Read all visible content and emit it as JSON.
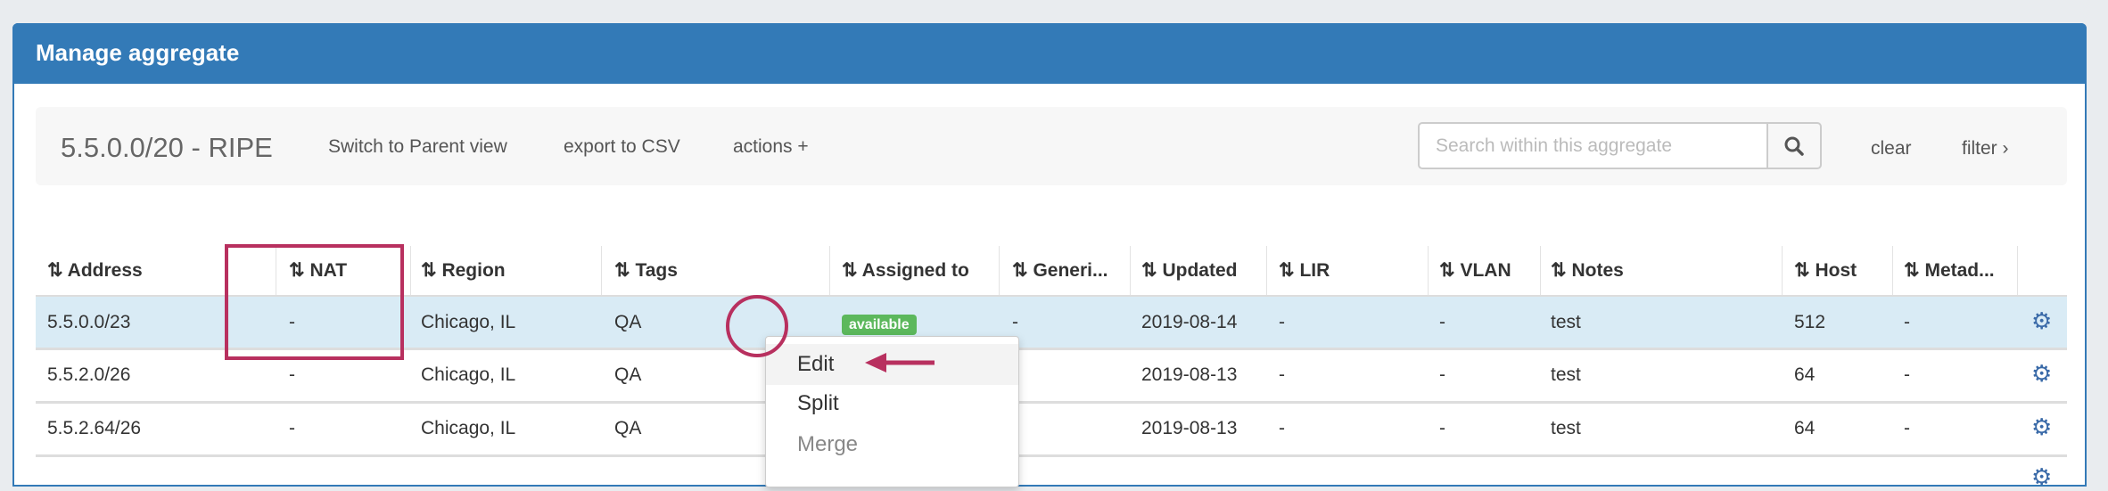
{
  "panel": {
    "title": "Manage aggregate"
  },
  "toolbar": {
    "aggregate_title": "5.5.0.0/20 - RIPE",
    "switch_parent": "Switch to Parent view",
    "export_csv": "export to CSV",
    "actions": "actions +",
    "search_placeholder": "Search within this aggregate",
    "clear": "clear",
    "filter": "filter ›"
  },
  "table": {
    "sort_icon": "⇅",
    "columns": [
      "Address",
      "NAT",
      "Region",
      "Tags",
      "Assigned to",
      "Generi...",
      "Updated",
      "LIR",
      "VLAN",
      "Notes",
      "Host",
      "Metad..."
    ],
    "rows": [
      {
        "address": "5.5.0.0/23",
        "nat": "-",
        "region": "Chicago, IL",
        "tags": "QA",
        "assigned": "available",
        "generic": "-",
        "updated": "2019-08-14",
        "lir": "-",
        "vlan": "-",
        "notes": "test",
        "host": "512",
        "meta": "-"
      },
      {
        "address": "5.5.2.0/26",
        "nat": "-",
        "region": "Chicago, IL",
        "tags": "QA",
        "assigned": "",
        "generic": "",
        "updated": "2019-08-13",
        "lir": "-",
        "vlan": "-",
        "notes": "test",
        "host": "64",
        "meta": "-"
      },
      {
        "address": "5.5.2.64/26",
        "nat": "-",
        "region": "Chicago, IL",
        "tags": "QA",
        "assigned": "",
        "generic": "",
        "updated": "2019-08-13",
        "lir": "-",
        "vlan": "-",
        "notes": "test",
        "host": "64",
        "meta": "-"
      }
    ]
  },
  "context_menu": {
    "items": [
      "Edit",
      "Split",
      "Merge"
    ]
  },
  "colors": {
    "primary": "#337ab7",
    "available": "#5cb85c",
    "annotation": "#b8305f",
    "selected_row": "#d9ebf5"
  }
}
